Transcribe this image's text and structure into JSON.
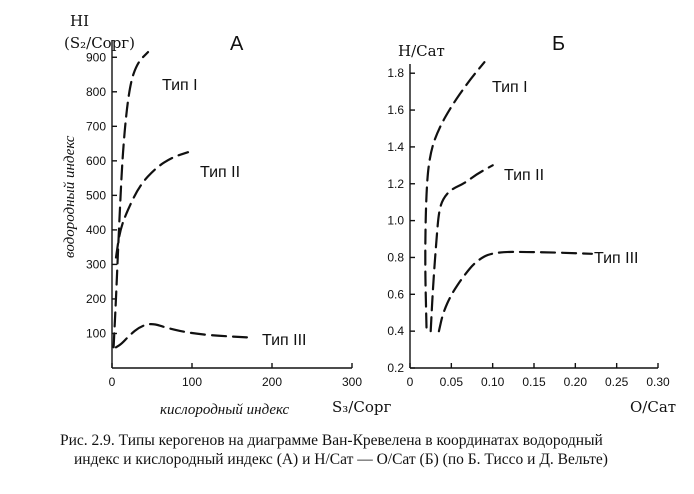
{
  "chart_data": [
    {
      "id": "A",
      "type": "line",
      "panel_label": "А",
      "ylabel_lines": [
        "HI",
        "(S₂/Cорг)"
      ],
      "ylabel_side": "водородный индекс",
      "xlabel_side": "кислородный индекс",
      "xlabel_unit": "S₃/Cорг",
      "xlim": [
        0,
        300
      ],
      "ylim": [
        0,
        950
      ],
      "x_ticks": [
        0,
        100,
        200,
        300
      ],
      "y_ticks": [
        100,
        200,
        300,
        400,
        500,
        600,
        700,
        800,
        900
      ],
      "grid": false,
      "series": [
        {
          "name": "Тип I",
          "x": [
            2,
            5,
            9,
            14,
            22,
            32,
            45
          ],
          "y": [
            60,
            200,
            420,
            650,
            820,
            885,
            915
          ]
        },
        {
          "name": "Тип II",
          "x": [
            5,
            10,
            20,
            35,
            55,
            75,
            95
          ],
          "y": [
            320,
            400,
            460,
            530,
            580,
            610,
            625
          ]
        },
        {
          "name": "Тип III",
          "x": [
            5,
            12,
            22,
            35,
            50,
            70,
            100,
            140,
            175
          ],
          "y": [
            60,
            70,
            95,
            120,
            130,
            115,
            100,
            92,
            88
          ]
        }
      ]
    },
    {
      "id": "B",
      "type": "line",
      "panel_label": "Б",
      "ylabel": "H/Cат",
      "xlabel": "O/Cат",
      "xlim": [
        0,
        0.3
      ],
      "ylim": [
        0.2,
        1.85
      ],
      "x_ticks": [
        "0",
        "0.05",
        "0.10",
        "0.15",
        "0.20",
        "0.25",
        "0.30"
      ],
      "y_ticks": [
        "0.2",
        "0.4",
        "0.6",
        "0.8",
        "1.0",
        "1.2",
        "1.4",
        "1.6",
        "1.8"
      ],
      "grid": false,
      "series": [
        {
          "name": "Тип I",
          "x": [
            0.02,
            0.018,
            0.02,
            0.025,
            0.035,
            0.05,
            0.07,
            0.09
          ],
          "y": [
            0.42,
            0.8,
            1.2,
            1.38,
            1.5,
            1.62,
            1.75,
            1.86
          ]
        },
        {
          "name": "Тип II",
          "x": [
            0.025,
            0.028,
            0.032,
            0.035,
            0.04,
            0.05,
            0.065,
            0.08,
            0.1
          ],
          "y": [
            0.4,
            0.65,
            0.9,
            1.05,
            1.12,
            1.17,
            1.2,
            1.25,
            1.3
          ]
        },
        {
          "name": "Тип III",
          "x": [
            0.035,
            0.04,
            0.05,
            0.065,
            0.08,
            0.1,
            0.15,
            0.22
          ],
          "y": [
            0.4,
            0.5,
            0.6,
            0.7,
            0.78,
            0.83,
            0.83,
            0.82
          ]
        }
      ]
    }
  ],
  "caption": {
    "line1": "Рис. 2.9. Типы керогенов на диаграмме Ван-Кревелена в координатах водородный",
    "line2": "индекс и кислородный индекс (А) и H/Cат — O/Cат (Б) (по Б. Тиссо и Д. Вельте)"
  }
}
